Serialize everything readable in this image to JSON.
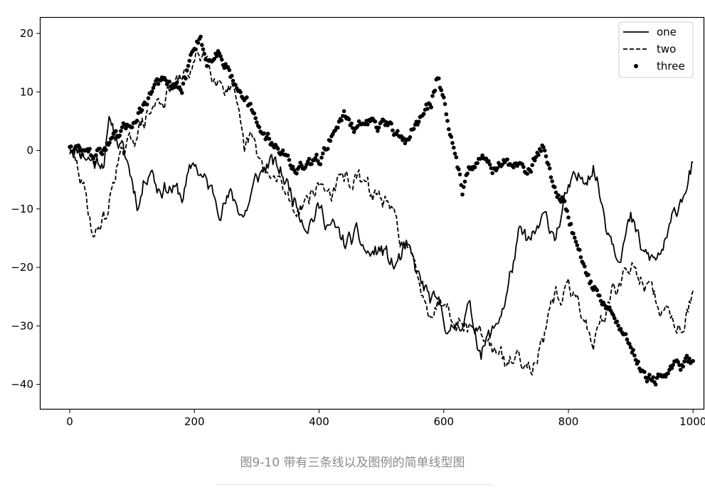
{
  "caption": "图9-10 带有三条线以及图例的简单线型图",
  "chart_data": {
    "type": "line",
    "xlim": [
      -48,
      1018
    ],
    "ylim": [
      -44.3,
      22.8
    ],
    "x_ticks": [
      0,
      200,
      400,
      600,
      800,
      1000
    ],
    "y_ticks": [
      -40,
      -30,
      -20,
      -10,
      0,
      10,
      20
    ],
    "grid": false,
    "legend_position": "top-right",
    "legend": [
      "one",
      "two",
      "three"
    ],
    "series": [
      {
        "name": "one",
        "style": "solid",
        "x": [
          0,
          20,
          40,
          55,
          65,
          80,
          95,
          110,
          120,
          130,
          140,
          160,
          180,
          200,
          210,
          220,
          240,
          260,
          280,
          300,
          320,
          340,
          360,
          380,
          400,
          420,
          440,
          460,
          480,
          500,
          520,
          540,
          560,
          580,
          600,
          610,
          620,
          640,
          660,
          680,
          700,
          720,
          740,
          760,
          780,
          800,
          820,
          840,
          860,
          880,
          900,
          920,
          940,
          960,
          980,
          1000
        ],
        "y": [
          1,
          0,
          -2,
          -1,
          5,
          1,
          -3,
          -9,
          -5,
          -2,
          -6,
          -6,
          -8,
          -2,
          -4,
          -6,
          -9,
          -8,
          -11,
          -5,
          -2,
          -4,
          -8,
          -12,
          -10,
          -13,
          -16,
          -15,
          -18,
          -17,
          -20,
          -17,
          -22,
          -26,
          -28,
          -32,
          -30,
          -27,
          -34,
          -31,
          -25,
          -15,
          -16,
          -12,
          -14,
          -7,
          -5,
          -2,
          -12,
          -17,
          -12,
          -18,
          -19,
          -15,
          -8,
          -2
        ],
        "points_generated_by_script": "random-walk interpolation between anchors"
      },
      {
        "name": "two",
        "style": "dashed",
        "x": [
          0,
          15,
          30,
          40,
          50,
          60,
          75,
          90,
          100,
          120,
          140,
          160,
          180,
          200,
          215,
          230,
          245,
          260,
          270,
          280,
          290,
          300,
          320,
          340,
          360,
          380,
          400,
          420,
          440,
          460,
          480,
          500,
          520,
          540,
          560,
          580,
          600,
          620,
          640,
          660,
          680,
          700,
          720,
          740,
          760,
          780,
          800,
          820,
          840,
          860,
          880,
          900,
          920,
          940,
          960,
          980,
          1000
        ],
        "y": [
          0,
          -4,
          -10,
          -15,
          -12,
          -11,
          -2,
          -1,
          2,
          5,
          8,
          10,
          12,
          15,
          17,
          14,
          12,
          10,
          5,
          -1,
          2,
          -1,
          -5,
          -6,
          -10,
          -8,
          -6,
          -7,
          -5,
          -5,
          -7,
          -8,
          -12,
          -17,
          -22,
          -27,
          -25,
          -28,
          -30,
          -31,
          -34,
          -37,
          -35,
          -36,
          -33,
          -25,
          -24,
          -27,
          -33,
          -27,
          -23,
          -20,
          -22,
          -26,
          -28,
          -30,
          -24
        ],
        "points_generated_by_script": "random-walk interpolation between anchors"
      },
      {
        "name": "three",
        "style": "dots",
        "x": [
          0,
          20,
          40,
          60,
          80,
          100,
          120,
          140,
          160,
          180,
          200,
          210,
          220,
          240,
          260,
          280,
          300,
          320,
          340,
          360,
          380,
          400,
          420,
          440,
          460,
          480,
          500,
          520,
          540,
          560,
          580,
          590,
          600,
          620,
          630,
          640,
          660,
          680,
          700,
          720,
          740,
          760,
          780,
          790,
          800,
          820,
          840,
          860,
          880,
          900,
          920,
          940,
          960,
          980,
          1000
        ],
        "y": [
          1,
          0,
          -1,
          1,
          2,
          5,
          8,
          12,
          11,
          10,
          18,
          20,
          15,
          17,
          13,
          10,
          4,
          2,
          0,
          -3,
          -3,
          -2,
          3,
          6,
          4,
          5,
          4,
          3,
          2,
          5,
          8,
          13,
          9,
          -2,
          -7,
          -2,
          -1,
          -3,
          -2,
          -3,
          -3,
          1,
          -7,
          -8,
          -12,
          -18,
          -24,
          -26,
          -30,
          -33,
          -38,
          -39,
          -38,
          -37,
          -36
        ],
        "points_generated_by_script": "random-walk interpolation between anchors"
      }
    ]
  }
}
